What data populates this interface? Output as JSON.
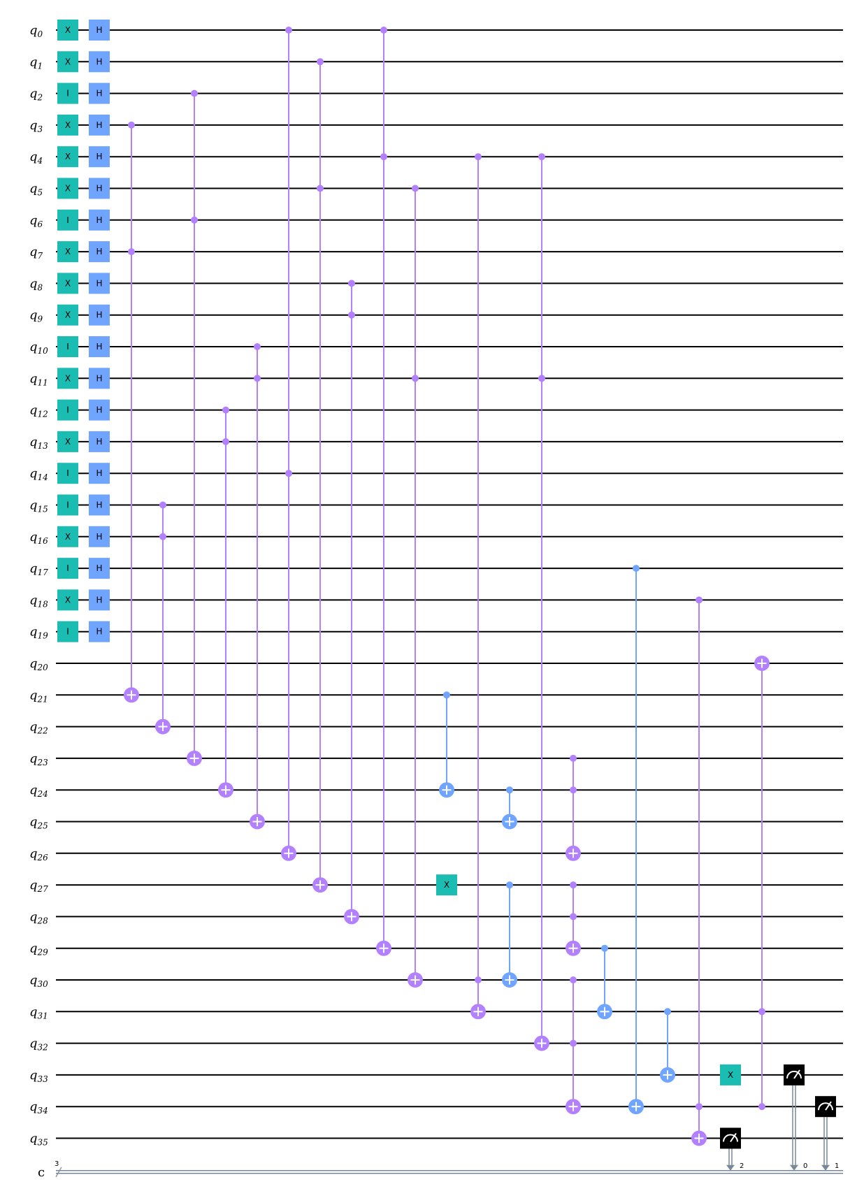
{
  "circuit": {
    "num_qubits": 36,
    "qubit_prefix": "q",
    "classical_register": {
      "name": "c",
      "size": "3"
    },
    "colors": {
      "x_gate": "#1bbcb2",
      "h_gate": "#6fa4ff",
      "multi_ctrl": "#b380ff",
      "cnot": "#6fa4ff",
      "measure": "#000000",
      "classical_wire": "#778899",
      "wire": "#000000"
    },
    "columns": [
      {
        "gates": [
          {
            "type": "box",
            "label": "X",
            "qubit": 0,
            "color": "x_gate"
          },
          {
            "type": "box",
            "label": "X",
            "qubit": 1,
            "color": "x_gate"
          },
          {
            "type": "box",
            "label": "I",
            "qubit": 2,
            "color": "x_gate"
          },
          {
            "type": "box",
            "label": "X",
            "qubit": 3,
            "color": "x_gate"
          },
          {
            "type": "box",
            "label": "X",
            "qubit": 4,
            "color": "x_gate"
          },
          {
            "type": "box",
            "label": "X",
            "qubit": 5,
            "color": "x_gate"
          },
          {
            "type": "box",
            "label": "I",
            "qubit": 6,
            "color": "x_gate"
          },
          {
            "type": "box",
            "label": "X",
            "qubit": 7,
            "color": "x_gate"
          },
          {
            "type": "box",
            "label": "X",
            "qubit": 8,
            "color": "x_gate"
          },
          {
            "type": "box",
            "label": "X",
            "qubit": 9,
            "color": "x_gate"
          },
          {
            "type": "box",
            "label": "I",
            "qubit": 10,
            "color": "x_gate"
          },
          {
            "type": "box",
            "label": "X",
            "qubit": 11,
            "color": "x_gate"
          },
          {
            "type": "box",
            "label": "I",
            "qubit": 12,
            "color": "x_gate"
          },
          {
            "type": "box",
            "label": "X",
            "qubit": 13,
            "color": "x_gate"
          },
          {
            "type": "box",
            "label": "I",
            "qubit": 14,
            "color": "x_gate"
          },
          {
            "type": "box",
            "label": "I",
            "qubit": 15,
            "color": "x_gate"
          },
          {
            "type": "box",
            "label": "X",
            "qubit": 16,
            "color": "x_gate"
          },
          {
            "type": "box",
            "label": "I",
            "qubit": 17,
            "color": "x_gate"
          },
          {
            "type": "box",
            "label": "X",
            "qubit": 18,
            "color": "x_gate"
          },
          {
            "type": "box",
            "label": "I",
            "qubit": 19,
            "color": "x_gate"
          }
        ]
      },
      {
        "gates": [
          {
            "type": "box",
            "label": "H",
            "qubit": 0,
            "color": "h_gate"
          },
          {
            "type": "box",
            "label": "H",
            "qubit": 1,
            "color": "h_gate"
          },
          {
            "type": "box",
            "label": "H",
            "qubit": 2,
            "color": "h_gate"
          },
          {
            "type": "box",
            "label": "H",
            "qubit": 3,
            "color": "h_gate"
          },
          {
            "type": "box",
            "label": "H",
            "qubit": 4,
            "color": "h_gate"
          },
          {
            "type": "box",
            "label": "H",
            "qubit": 5,
            "color": "h_gate"
          },
          {
            "type": "box",
            "label": "H",
            "qubit": 6,
            "color": "h_gate"
          },
          {
            "type": "box",
            "label": "H",
            "qubit": 7,
            "color": "h_gate"
          },
          {
            "type": "box",
            "label": "H",
            "qubit": 8,
            "color": "h_gate"
          },
          {
            "type": "box",
            "label": "H",
            "qubit": 9,
            "color": "h_gate"
          },
          {
            "type": "box",
            "label": "H",
            "qubit": 10,
            "color": "h_gate"
          },
          {
            "type": "box",
            "label": "H",
            "qubit": 11,
            "color": "h_gate"
          },
          {
            "type": "box",
            "label": "H",
            "qubit": 12,
            "color": "h_gate"
          },
          {
            "type": "box",
            "label": "H",
            "qubit": 13,
            "color": "h_gate"
          },
          {
            "type": "box",
            "label": "H",
            "qubit": 14,
            "color": "h_gate"
          },
          {
            "type": "box",
            "label": "H",
            "qubit": 15,
            "color": "h_gate"
          },
          {
            "type": "box",
            "label": "H",
            "qubit": 16,
            "color": "h_gate"
          },
          {
            "type": "box",
            "label": "H",
            "qubit": 17,
            "color": "h_gate"
          },
          {
            "type": "box",
            "label": "H",
            "qubit": 18,
            "color": "h_gate"
          },
          {
            "type": "box",
            "label": "H",
            "qubit": 19,
            "color": "h_gate"
          }
        ]
      },
      {
        "gates": [
          {
            "type": "ctrl",
            "controls": [
              3,
              7
            ],
            "target": 21,
            "color": "multi_ctrl"
          }
        ]
      },
      {
        "gates": [
          {
            "type": "ctrl",
            "controls": [
              15,
              16
            ],
            "target": 22,
            "color": "multi_ctrl"
          }
        ]
      },
      {
        "gates": [
          {
            "type": "ctrl",
            "controls": [
              2,
              6
            ],
            "target": 23,
            "color": "multi_ctrl"
          }
        ]
      },
      {
        "gates": [
          {
            "type": "ctrl",
            "controls": [
              12,
              13
            ],
            "target": 24,
            "color": "multi_ctrl"
          }
        ]
      },
      {
        "gates": [
          {
            "type": "ctrl",
            "controls": [
              10,
              11
            ],
            "target": 25,
            "color": "multi_ctrl"
          }
        ]
      },
      {
        "gates": [
          {
            "type": "ctrl",
            "controls": [
              0,
              14
            ],
            "target": 26,
            "color": "multi_ctrl"
          }
        ]
      },
      {
        "gates": [
          {
            "type": "ctrl",
            "controls": [
              1,
              5
            ],
            "target": 27,
            "color": "multi_ctrl"
          }
        ]
      },
      {
        "gates": [
          {
            "type": "ctrl",
            "controls": [
              8,
              9
            ],
            "target": 28,
            "color": "multi_ctrl"
          }
        ]
      },
      {
        "gates": [
          {
            "type": "ctrl",
            "controls": [
              0,
              4
            ],
            "target": 29,
            "color": "multi_ctrl"
          }
        ]
      },
      {
        "gates": [
          {
            "type": "ctrl",
            "controls": [
              5,
              11
            ],
            "target": 30,
            "color": "multi_ctrl"
          }
        ]
      },
      {
        "gates": [
          {
            "type": "ctrl",
            "controls": [
              21
            ],
            "target": 24,
            "color": "cnot"
          },
          {
            "type": "box",
            "label": "X",
            "qubit": 27,
            "color": "x_gate"
          }
        ]
      },
      {
        "gates": [
          {
            "type": "ctrl",
            "controls": [
              4,
              30
            ],
            "target": 31,
            "color": "multi_ctrl"
          }
        ]
      },
      {
        "gates": [
          {
            "type": "ctrl",
            "controls": [
              24
            ],
            "target": 25,
            "color": "cnot"
          },
          {
            "type": "ctrl",
            "controls": [
              27
            ],
            "target": 30,
            "color": "cnot"
          }
        ]
      },
      {
        "gates": [
          {
            "type": "ctrl",
            "controls": [
              4,
              11
            ],
            "target": 32,
            "color": "multi_ctrl"
          }
        ]
      },
      {
        "gates": [
          {
            "type": "ctrl",
            "controls": [
              23,
              24
            ],
            "target": 26,
            "color": "multi_ctrl"
          },
          {
            "type": "ctrl",
            "controls": [
              27,
              28
            ],
            "target": 29,
            "color": "multi_ctrl"
          },
          {
            "type": "ctrl",
            "controls": [
              30,
              32
            ],
            "target": 34,
            "color": "multi_ctrl"
          }
        ]
      },
      {
        "gates": [
          {
            "type": "ctrl",
            "controls": [
              29
            ],
            "target": 31,
            "color": "cnot"
          }
        ]
      },
      {
        "gates": [
          {
            "type": "ctrl",
            "controls": [
              17
            ],
            "target": 34,
            "color": "cnot"
          }
        ]
      },
      {
        "gates": [
          {
            "type": "ctrl",
            "controls": [
              31
            ],
            "target": 33,
            "color": "cnot"
          }
        ]
      },
      {
        "gates": [
          {
            "type": "ctrl",
            "controls": [
              18,
              34
            ],
            "target": 35,
            "color": "multi_ctrl"
          }
        ]
      },
      {
        "gates": [
          {
            "type": "box",
            "label": "X",
            "qubit": 33,
            "color": "x_gate"
          },
          {
            "type": "measure",
            "qubit": 35,
            "clbit": "2"
          }
        ]
      },
      {
        "gates": [
          {
            "type": "ctrl",
            "controls": [
              31,
              34
            ],
            "target": 20,
            "color": "multi_ctrl"
          }
        ]
      },
      {
        "gates": [
          {
            "type": "measure",
            "qubit": 33,
            "clbit": "0"
          }
        ]
      },
      {
        "gates": [
          {
            "type": "measure",
            "qubit": 34,
            "clbit": "1"
          }
        ]
      }
    ]
  }
}
